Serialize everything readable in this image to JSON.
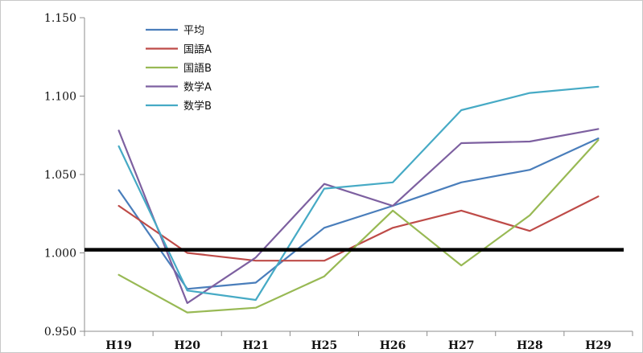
{
  "chart_data": {
    "type": "line",
    "title": "",
    "xlabel": "",
    "ylabel": "",
    "categories": [
      "H19",
      "H20",
      "H21",
      "H25",
      "H26",
      "H27",
      "H28",
      "H29"
    ],
    "ylim": [
      0.95,
      1.15
    ],
    "yticks": [
      "0.950",
      "1.000",
      "1.050",
      "1.100",
      "1.150"
    ],
    "reference_line": {
      "value": 1.002,
      "color": "#000000"
    },
    "legend_position": "top-left",
    "grid": false,
    "series": [
      {
        "name": "平均",
        "color": "#4a7ebb",
        "values": [
          1.04,
          0.977,
          0.981,
          1.016,
          1.03,
          1.045,
          1.053,
          1.073
        ]
      },
      {
        "name": "国語A",
        "color": "#be4b48",
        "values": [
          1.03,
          1.0,
          0.995,
          0.995,
          1.016,
          1.027,
          1.014,
          1.036
        ]
      },
      {
        "name": "国語B",
        "color": "#98b954",
        "values": [
          0.986,
          0.962,
          0.965,
          0.985,
          1.027,
          0.992,
          1.024,
          1.072
        ]
      },
      {
        "name": "数学A",
        "color": "#7d60a0",
        "values": [
          1.078,
          0.968,
          0.997,
          1.044,
          1.03,
          1.07,
          1.071,
          1.079
        ]
      },
      {
        "name": "数学B",
        "color": "#46aac5",
        "values": [
          1.068,
          0.976,
          0.97,
          1.041,
          1.045,
          1.091,
          1.102,
          1.106
        ]
      }
    ]
  }
}
